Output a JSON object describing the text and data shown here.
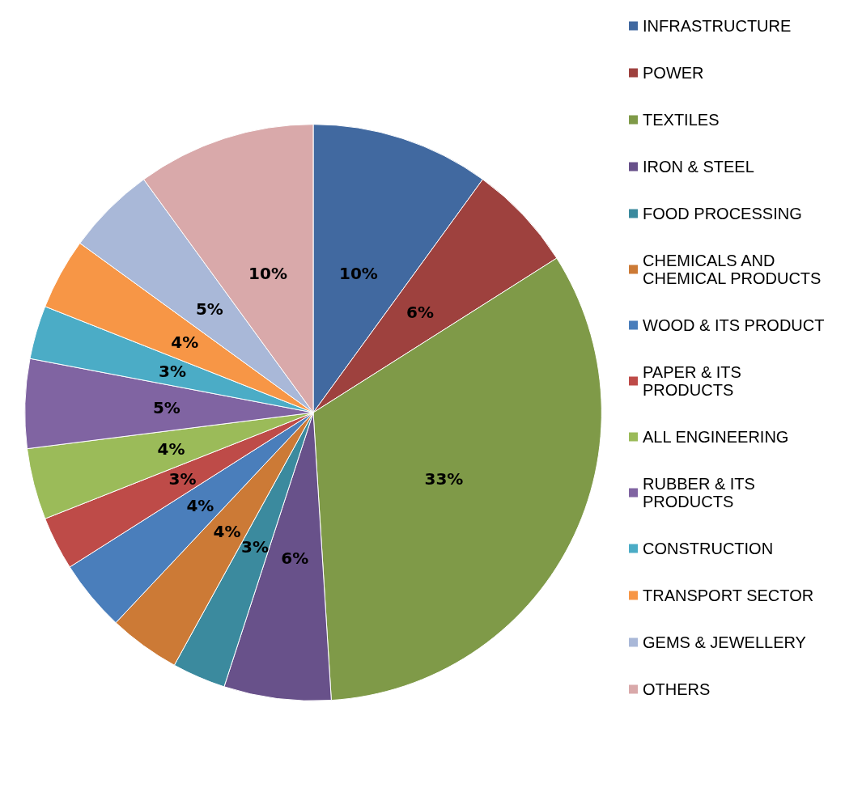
{
  "chart_data": {
    "type": "pie",
    "categories": [
      "INFRASTRUCTURE",
      "POWER",
      "TEXTILES",
      "IRON & STEEL",
      "FOOD PROCESSING",
      "CHEMICALS AND CHEMICAL PRODUCTS",
      "WOOD & ITS PRODUCT",
      "PAPER & ITS PRODUCTS",
      "ALL ENGINEERING",
      "RUBBER & ITS PRODUCTS",
      "CONSTRUCTION",
      "TRANSPORT SECTOR",
      "GEMS & JEWELLERY",
      "OTHERS"
    ],
    "values": [
      10,
      6,
      33,
      6,
      3,
      4,
      4,
      3,
      4,
      5,
      3,
      4,
      5,
      10
    ],
    "colors": [
      "#4169a0",
      "#9e413e",
      "#7f9a48",
      "#68518a",
      "#3b8a9e",
      "#cc7a36",
      "#4a7ebb",
      "#be4b48",
      "#9bbb59",
      "#8064a2",
      "#4bacc6",
      "#f79646",
      "#a9b8d8",
      "#d9a9aa"
    ],
    "value_labels": [
      "10%",
      "6%",
      "33%",
      "6%",
      "3%",
      "4%",
      "4%",
      "3%",
      "4%",
      "5%",
      "3%",
      "4%",
      "5%",
      "10%"
    ],
    "legend": "right"
  }
}
